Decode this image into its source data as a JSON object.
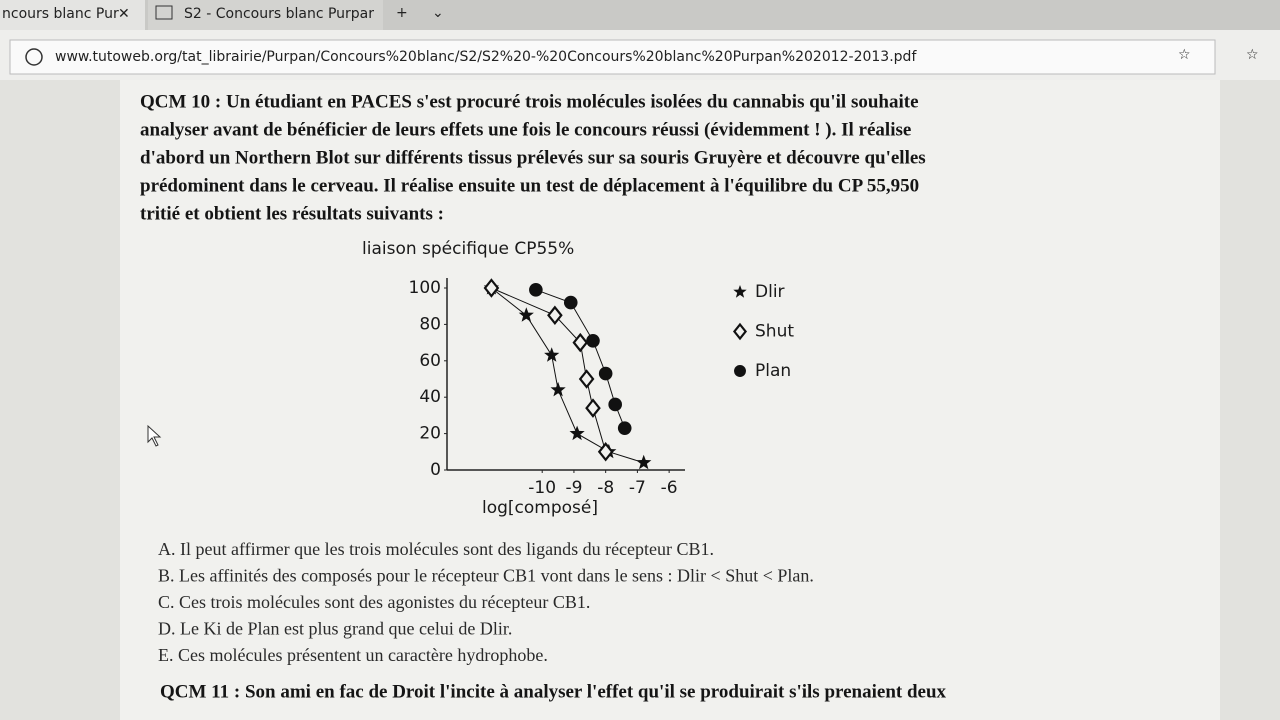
{
  "browser": {
    "tabs": [
      "ncours blanc Pur",
      "S2 - Concours blanc Purpar"
    ],
    "url": "www.tutoweb.org/tat_librairie/Purpan/Concours%20blanc/S2/S2%20-%20Concours%20blanc%20Purpan%202012-2013.pdf"
  },
  "question": {
    "lines": [
      "QCM 10 : Un étudiant en PACES s'est procuré trois molécules isolées du cannabis qu'il souhaite",
      "analyser avant de bénéficier de leurs effets une fois le concours réussi (évidemment ! ). Il réalise",
      "d'abord un Northern Blot sur différents tissus prélevés sur sa souris Gruyère et découvre qu'elles",
      "prédominent dans le cerveau. Il réalise ensuite un test de déplacement à l'équilibre du CP 55,950",
      "tritié et obtient les résultats suivants :"
    ]
  },
  "chart_data": {
    "type": "scatter",
    "y_label": "liaison spécifique CP55%",
    "x_label": "log[composé]",
    "xlim": [
      -13,
      -5.5
    ],
    "ylim": [
      0,
      100
    ],
    "xticks": [
      -10,
      -9,
      -8,
      -7,
      -6
    ],
    "yticks": [
      0,
      20,
      40,
      60,
      80,
      100
    ],
    "series": [
      {
        "name": "Dlir",
        "color": "#111111",
        "marker": "star",
        "x": [
          -11.6,
          -10.5,
          -9.7,
          -9.5,
          -8.9,
          -7.9,
          -6.8
        ],
        "values": [
          100,
          85,
          63,
          44,
          20,
          10,
          4
        ]
      },
      {
        "name": "Shut",
        "color": "#111111",
        "marker": "diamond",
        "x": [
          -11.6,
          -9.6,
          -8.8,
          -8.6,
          -8.4,
          -8.0
        ],
        "values": [
          100,
          85,
          70,
          50,
          34,
          10
        ]
      },
      {
        "name": "Plan",
        "color": "#111111",
        "marker": "circle",
        "x": [
          -10.2,
          -9.1,
          -8.4,
          -8.0,
          -7.7,
          -7.4
        ],
        "values": [
          99,
          92,
          71,
          53,
          36,
          23
        ]
      }
    ]
  },
  "answers": [
    "A. Il peut affirmer que les trois molécules sont des ligands du récepteur CB1.",
    "B. Les affinités des composés pour le récepteur CB1 vont dans le sens : Dlir < Shut < Plan.",
    "C. Ces trois molécules sont des agonistes du récepteur CB1.",
    "D. Le Ki de Plan est plus grand que celui de Dlir.",
    "E. Ces molécules présentent un caractère hydrophobe."
  ],
  "next_question": "QCM 11 : Son ami en fac de Droit l'incite à analyser l'effet qu'il se produirait s'ils prenaient deux"
}
